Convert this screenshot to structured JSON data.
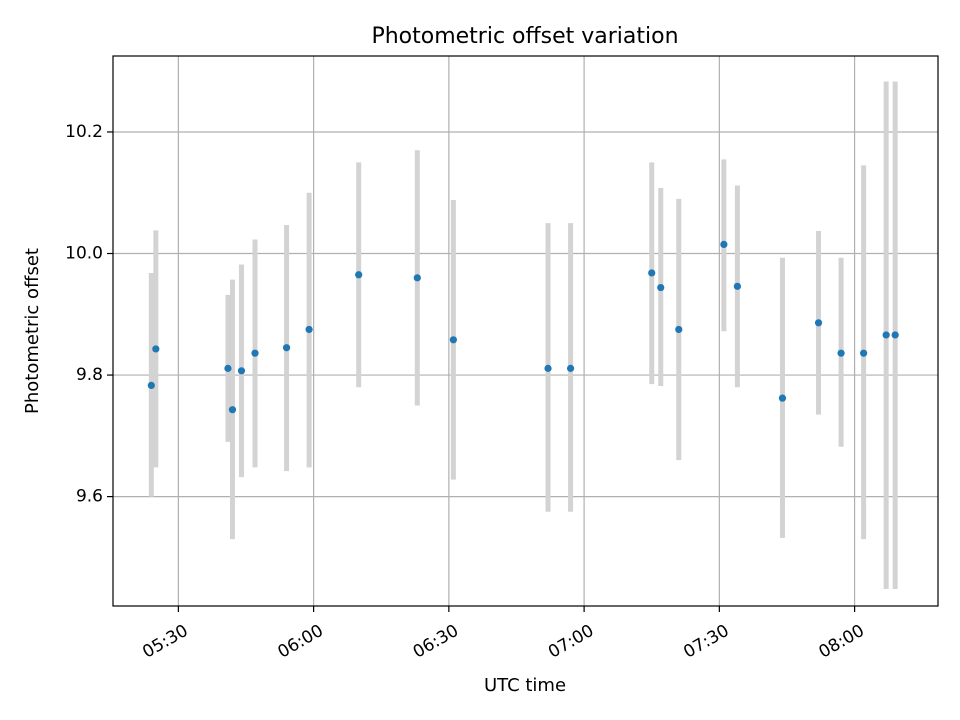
{
  "chart_data": {
    "type": "scatter",
    "title": "Photometric offset variation",
    "xlabel": "UTC time",
    "ylabel": "Photometric offset",
    "x_unit": "time of day (UTC)",
    "xlim": [
      "05:15:30",
      "08:18:30"
    ],
    "ylim": [
      9.42,
      10.325
    ],
    "x_ticks": [
      "05:30",
      "06:00",
      "06:30",
      "07:00",
      "07:30",
      "08:00"
    ],
    "y_ticks": [
      9.6,
      9.8,
      10.0,
      10.2
    ],
    "y_tick_labels": [
      "9.6",
      "9.8",
      "10.0",
      "10.2"
    ],
    "grid": true,
    "point_color": "#1f77b4",
    "errorbar_color": "#d3d3d3",
    "points": [
      {
        "x": "05:24",
        "y": 9.783,
        "ylow": 9.6,
        "yhigh": 9.968
      },
      {
        "x": "05:25",
        "y": 9.843,
        "ylow": 9.648,
        "yhigh": 10.038
      },
      {
        "x": "05:41",
        "y": 9.811,
        "ylow": 9.69,
        "yhigh": 9.932
      },
      {
        "x": "05:42",
        "y": 9.743,
        "ylow": 9.53,
        "yhigh": 9.957
      },
      {
        "x": "05:44",
        "y": 9.807,
        "ylow": 9.632,
        "yhigh": 9.982
      },
      {
        "x": "05:47",
        "y": 9.836,
        "ylow": 9.648,
        "yhigh": 10.023
      },
      {
        "x": "05:54",
        "y": 9.845,
        "ylow": 9.642,
        "yhigh": 10.047
      },
      {
        "x": "05:59",
        "y": 9.875,
        "ylow": 9.648,
        "yhigh": 10.1
      },
      {
        "x": "06:10",
        "y": 9.965,
        "ylow": 9.78,
        "yhigh": 10.15
      },
      {
        "x": "06:23",
        "y": 9.96,
        "ylow": 9.75,
        "yhigh": 10.17
      },
      {
        "x": "06:31",
        "y": 9.858,
        "ylow": 9.628,
        "yhigh": 10.088
      },
      {
        "x": "06:52",
        "y": 9.811,
        "ylow": 9.575,
        "yhigh": 10.05
      },
      {
        "x": "06:57",
        "y": 9.811,
        "ylow": 9.575,
        "yhigh": 10.05
      },
      {
        "x": "07:15",
        "y": 9.968,
        "ylow": 9.785,
        "yhigh": 10.15
      },
      {
        "x": "07:17",
        "y": 9.944,
        "ylow": 9.782,
        "yhigh": 10.108
      },
      {
        "x": "07:21",
        "y": 9.875,
        "ylow": 9.66,
        "yhigh": 10.09
      },
      {
        "x": "07:31",
        "y": 10.015,
        "ylow": 9.872,
        "yhigh": 10.155
      },
      {
        "x": "07:34",
        "y": 9.946,
        "ylow": 9.78,
        "yhigh": 10.112
      },
      {
        "x": "07:44",
        "y": 9.762,
        "ylow": 9.532,
        "yhigh": 9.993
      },
      {
        "x": "07:52",
        "y": 9.886,
        "ylow": 9.735,
        "yhigh": 10.037
      },
      {
        "x": "07:57",
        "y": 9.836,
        "ylow": 9.682,
        "yhigh": 9.993
      },
      {
        "x": "08:02",
        "y": 9.836,
        "ylow": 9.53,
        "yhigh": 10.145
      },
      {
        "x": "08:07",
        "y": 9.866,
        "ylow": 9.448,
        "yhigh": 10.283
      },
      {
        "x": "08:09",
        "y": 9.866,
        "ylow": 9.448,
        "yhigh": 10.283
      }
    ]
  }
}
